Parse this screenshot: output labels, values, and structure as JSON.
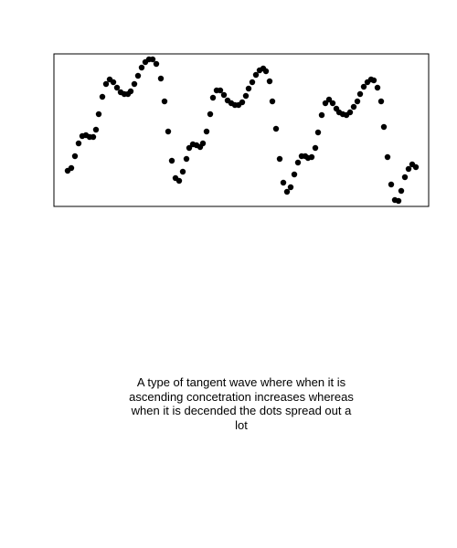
{
  "chart_data": {
    "type": "scatter",
    "color": "#000000",
    "xlim": [
      0,
      410
    ],
    "ylim": [
      0,
      167
    ],
    "x": [
      15,
      19,
      23,
      27,
      31,
      35,
      39,
      43,
      46,
      49,
      53,
      57,
      61,
      65,
      69,
      73,
      77,
      81,
      84,
      88,
      92,
      96,
      100,
      104,
      108,
      112,
      117,
      121,
      125,
      129,
      133,
      137,
      141,
      145,
      148,
      152,
      156,
      160,
      163,
      167,
      171,
      174,
      178,
      182,
      186,
      190,
      194,
      198,
      202,
      206,
      210,
      213,
      217,
      221,
      225,
      229,
      232,
      236,
      239,
      243,
      247,
      251,
      255,
      259,
      263,
      267,
      271,
      275,
      278,
      282,
      286,
      289,
      293,
      297,
      301,
      305,
      309,
      312,
      316,
      320,
      324,
      328,
      332,
      335,
      339,
      343,
      347,
      350,
      354,
      358,
      361,
      365,
      369,
      373,
      377,
      380,
      384,
      388,
      392,
      396
    ],
    "values": [
      39,
      42,
      55,
      69,
      77,
      78,
      76,
      76,
      84,
      101,
      120,
      134,
      139,
      136,
      130,
      125,
      123,
      123,
      126,
      134,
      143,
      152,
      158,
      161,
      161,
      156,
      140,
      115,
      82,
      50,
      31,
      28,
      38,
      52,
      64,
      68,
      67,
      65,
      69,
      82,
      101,
      119,
      127,
      127,
      122,
      116,
      113,
      111,
      111,
      114,
      121,
      129,
      136,
      144,
      149,
      151,
      148,
      137,
      115,
      85,
      52,
      26,
      16,
      21,
      35,
      48,
      55,
      55,
      53,
      54,
      64,
      81,
      100,
      113,
      117,
      113,
      107,
      103,
      101,
      100,
      103,
      109,
      115,
      123,
      131,
      136,
      139,
      138,
      130,
      115,
      87,
      54,
      24,
      7,
      6,
      17,
      32,
      41,
      46,
      43
    ],
    "caption": "A type of tangent wave where when it is ascending concetration increases whereas when it is decended the dots spread out a lot"
  }
}
